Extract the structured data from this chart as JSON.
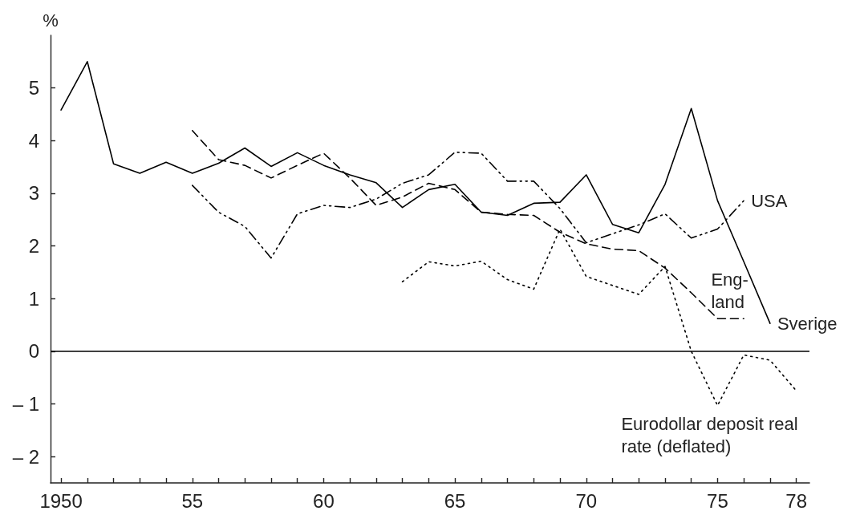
{
  "chart_data": {
    "type": "line",
    "ylabel": "%",
    "xlim": [
      1949.6,
      1978.5
    ],
    "xticks": [
      {
        "value": 1950,
        "label": "1950"
      },
      {
        "value": 1951,
        "label": null
      },
      {
        "value": 1952,
        "label": null
      },
      {
        "value": 1953,
        "label": null
      },
      {
        "value": 1954,
        "label": null
      },
      {
        "value": 1955,
        "label": "55"
      },
      {
        "value": 1956,
        "label": null
      },
      {
        "value": 1957,
        "label": null
      },
      {
        "value": 1958,
        "label": null
      },
      {
        "value": 1959,
        "label": null
      },
      {
        "value": 1960,
        "label": "60"
      },
      {
        "value": 1961,
        "label": null
      },
      {
        "value": 1962,
        "label": null
      },
      {
        "value": 1963,
        "label": null
      },
      {
        "value": 1964,
        "label": null
      },
      {
        "value": 1965,
        "label": "65"
      },
      {
        "value": 1966,
        "label": null
      },
      {
        "value": 1967,
        "label": null
      },
      {
        "value": 1968,
        "label": null
      },
      {
        "value": 1969,
        "label": null
      },
      {
        "value": 1970,
        "label": "70"
      },
      {
        "value": 1971,
        "label": null
      },
      {
        "value": 1972,
        "label": null
      },
      {
        "value": 1973,
        "label": null
      },
      {
        "value": 1974,
        "label": null
      },
      {
        "value": 1975,
        "label": "75"
      },
      {
        "value": 1976,
        "label": null
      },
      {
        "value": 1977,
        "label": null
      },
      {
        "value": 1978,
        "label": "78"
      }
    ],
    "ylim": [
      -2.5,
      6
    ],
    "yticks": [
      {
        "value": -2,
        "label": "– 2"
      },
      {
        "value": -1,
        "label": "– 1"
      },
      0,
      1,
      2,
      3,
      4,
      5
    ],
    "grid": false,
    "legend": false,
    "marker": "none",
    "ref_lines": [
      {
        "axis": "y",
        "value": 0
      }
    ],
    "series": [
      {
        "name": "Sverige",
        "color": "#000000",
        "line_style": "solid",
        "x": [
          1950,
          1951,
          1952,
          1953,
          1954,
          1955,
          1956,
          1957,
          1958,
          1959,
          1960,
          1961,
          1962,
          1963,
          1964,
          1965,
          1966,
          1967,
          1968,
          1969,
          1970,
          1971,
          1972,
          1973,
          1974,
          1975,
          1976,
          1977
        ],
        "values": [
          4.58,
          5.5,
          3.56,
          3.38,
          3.59,
          3.38,
          3.57,
          3.86,
          3.51,
          3.77,
          3.53,
          3.35,
          3.2,
          2.73,
          3.07,
          3.17,
          2.64,
          2.58,
          2.81,
          2.83,
          3.35,
          2.41,
          2.25,
          3.17,
          4.61,
          2.86,
          1.7,
          0.53
        ]
      },
      {
        "name": "Eng-\nland",
        "color": "#000000",
        "line_style": "dashed",
        "x": [
          1955,
          1956,
          1957,
          1958,
          1959,
          1960,
          1961,
          1962,
          1963,
          1964,
          1965,
          1966,
          1967,
          1968,
          1969,
          1970,
          1971,
          1972,
          1973,
          1974,
          1975,
          1976
        ],
        "values": [
          4.19,
          3.64,
          3.53,
          3.29,
          3.53,
          3.76,
          3.29,
          2.77,
          2.93,
          3.19,
          3.07,
          2.64,
          2.6,
          2.58,
          2.26,
          2.04,
          1.94,
          1.91,
          1.58,
          1.11,
          0.62,
          0.62
        ]
      },
      {
        "name": "USA",
        "color": "#000000",
        "line_style": "dashdot",
        "x": [
          1955,
          1956,
          1957,
          1958,
          1959,
          1960,
          1961,
          1962,
          1963,
          1964,
          1965,
          1966,
          1967,
          1968,
          1969,
          1970,
          1971,
          1972,
          1973,
          1974,
          1975,
          1976
        ],
        "values": [
          3.15,
          2.64,
          2.37,
          1.77,
          2.61,
          2.77,
          2.73,
          2.89,
          3.19,
          3.35,
          3.78,
          3.76,
          3.23,
          3.23,
          2.71,
          2.06,
          2.23,
          2.4,
          2.61,
          2.15,
          2.32,
          2.86
        ]
      },
      {
        "name": "Eurodollar deposit real\nrate (deflated)",
        "color": "#000000",
        "line_style": "dotted",
        "x": [
          1963,
          1964,
          1965,
          1966,
          1967,
          1968,
          1969,
          1970,
          1971,
          1972,
          1973,
          1974,
          1975,
          1976,
          1977,
          1978
        ],
        "values": [
          1.32,
          1.7,
          1.62,
          1.71,
          1.36,
          1.18,
          2.32,
          1.42,
          1.25,
          1.08,
          1.61,
          0.0,
          -1.03,
          -0.07,
          -0.17,
          -0.75
        ]
      }
    ]
  }
}
